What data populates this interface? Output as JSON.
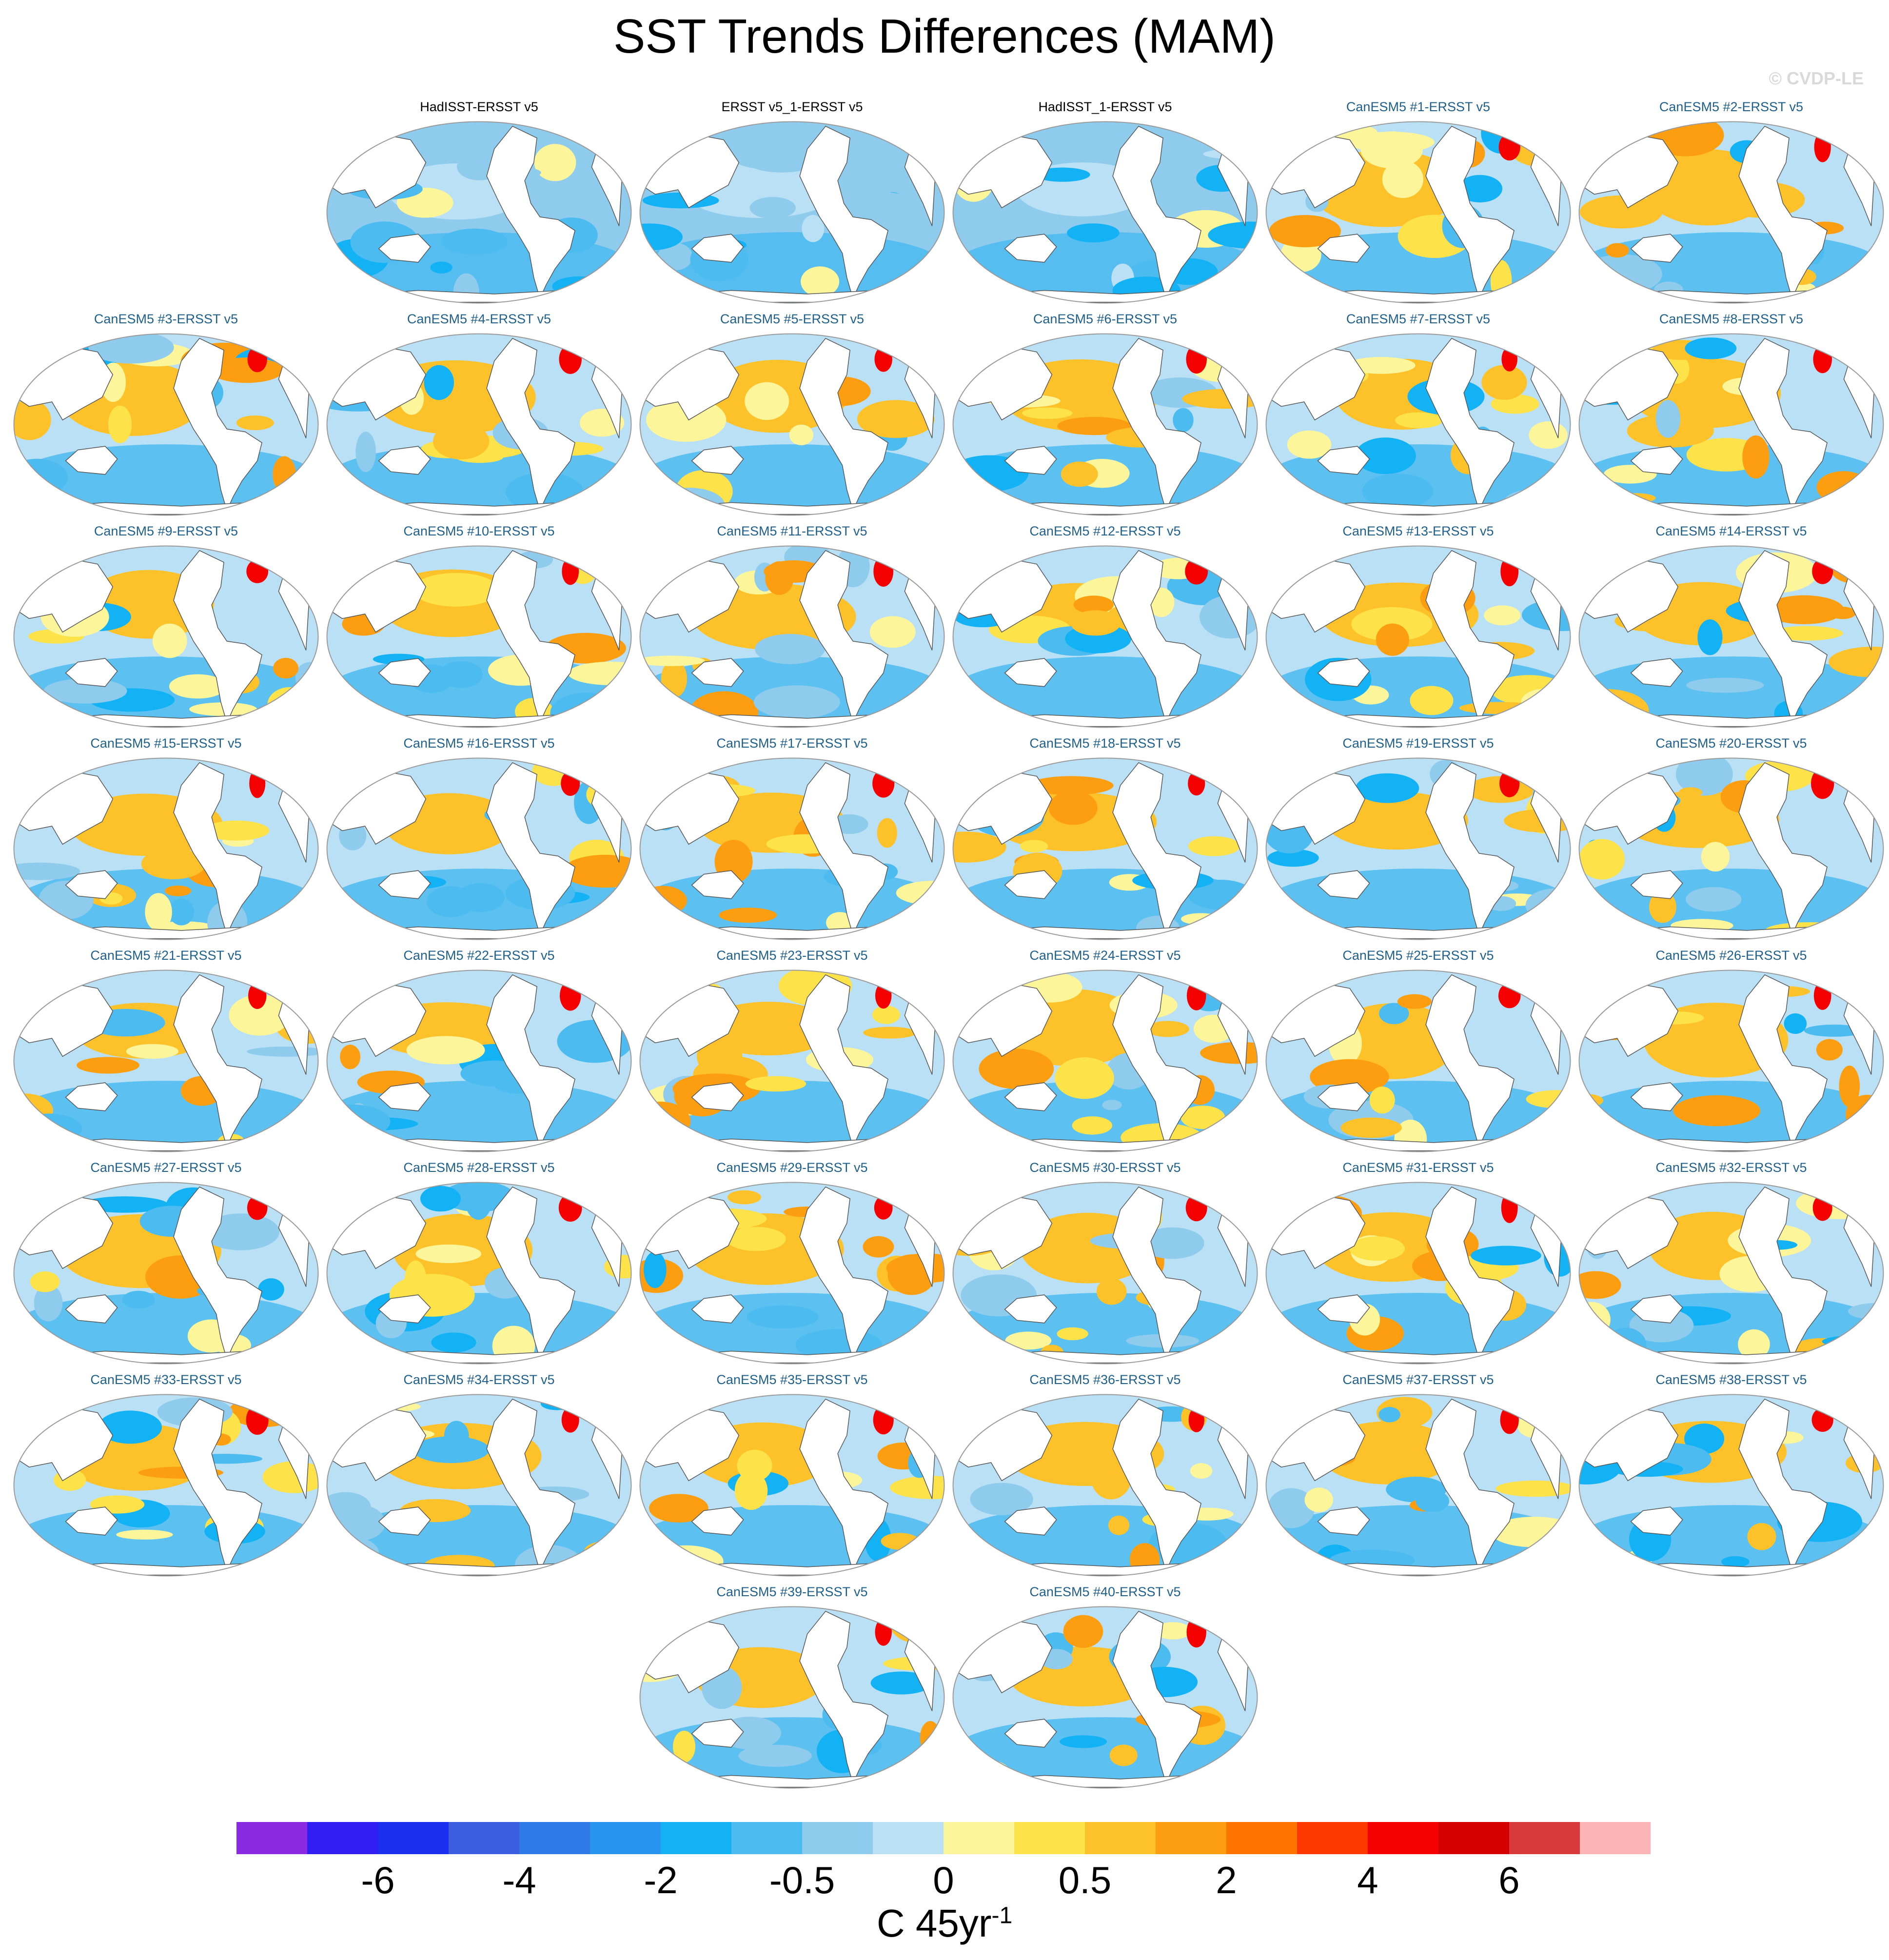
{
  "title": "SST Trends Differences (MAM)",
  "watermark": "© CVDP-LE",
  "units": {
    "base": "C 45yr",
    "exponent": "-1"
  },
  "colors": {
    "obs_label": "#000000",
    "model_label": "#1f5f8b",
    "ocean_warm": "#fde25a",
    "ocean_cool": "#4fb6f2",
    "land": "#ffffff",
    "coast": "#555555",
    "colorbar": [
      "#8a2be2",
      "#2f1df2",
      "#1a2ff0",
      "#3c5ee0",
      "#2f7ae6",
      "#2894f0",
      "#13b2f5",
      "#4bbbf0",
      "#8ecbec",
      "#b9e0f4",
      "#fdf59a",
      "#fde24a",
      "#fdc22a",
      "#fd9e10",
      "#fd7400",
      "#fd3800",
      "#f40000",
      "#d40000",
      "#d83a3a",
      "#fdb4b4"
    ]
  },
  "colorbar_labels": [
    "-6",
    "-4",
    "-2",
    "-0.5",
    "0",
    "0.5",
    "2",
    "4",
    "6"
  ],
  "panels": [
    {
      "label": "HadISST-ERSST v5",
      "obs": true
    },
    {
      "label": "ERSST v5_1-ERSST v5",
      "obs": true
    },
    {
      "label": "HadISST_1-ERSST v5",
      "obs": true
    },
    {
      "label": "CanESM5 #1-ERSST v5",
      "obs": false
    },
    {
      "label": "CanESM5 #2-ERSST v5",
      "obs": false
    },
    {
      "label": "CanESM5 #3-ERSST v5",
      "obs": false
    },
    {
      "label": "CanESM5 #4-ERSST v5",
      "obs": false
    },
    {
      "label": "CanESM5 #5-ERSST v5",
      "obs": false
    },
    {
      "label": "CanESM5 #6-ERSST v5",
      "obs": false
    },
    {
      "label": "CanESM5 #7-ERSST v5",
      "obs": false
    },
    {
      "label": "CanESM5 #8-ERSST v5",
      "obs": false
    },
    {
      "label": "CanESM5 #9-ERSST v5",
      "obs": false
    },
    {
      "label": "CanESM5 #10-ERSST v5",
      "obs": false
    },
    {
      "label": "CanESM5 #11-ERSST v5",
      "obs": false
    },
    {
      "label": "CanESM5 #12-ERSST v5",
      "obs": false
    },
    {
      "label": "CanESM5 #13-ERSST v5",
      "obs": false
    },
    {
      "label": "CanESM5 #14-ERSST v5",
      "obs": false
    },
    {
      "label": "CanESM5 #15-ERSST v5",
      "obs": false
    },
    {
      "label": "CanESM5 #16-ERSST v5",
      "obs": false
    },
    {
      "label": "CanESM5 #17-ERSST v5",
      "obs": false
    },
    {
      "label": "CanESM5 #18-ERSST v5",
      "obs": false
    },
    {
      "label": "CanESM5 #19-ERSST v5",
      "obs": false
    },
    {
      "label": "CanESM5 #20-ERSST v5",
      "obs": false
    },
    {
      "label": "CanESM5 #21-ERSST v5",
      "obs": false
    },
    {
      "label": "CanESM5 #22-ERSST v5",
      "obs": false
    },
    {
      "label": "CanESM5 #23-ERSST v5",
      "obs": false
    },
    {
      "label": "CanESM5 #24-ERSST v5",
      "obs": false
    },
    {
      "label": "CanESM5 #25-ERSST v5",
      "obs": false
    },
    {
      "label": "CanESM5 #26-ERSST v5",
      "obs": false
    },
    {
      "label": "CanESM5 #27-ERSST v5",
      "obs": false
    },
    {
      "label": "CanESM5 #28-ERSST v5",
      "obs": false
    },
    {
      "label": "CanESM5 #29-ERSST v5",
      "obs": false
    },
    {
      "label": "CanESM5 #30-ERSST v5",
      "obs": false
    },
    {
      "label": "CanESM5 #31-ERSST v5",
      "obs": false
    },
    {
      "label": "CanESM5 #32-ERSST v5",
      "obs": false
    },
    {
      "label": "CanESM5 #33-ERSST v5",
      "obs": false
    },
    {
      "label": "CanESM5 #34-ERSST v5",
      "obs": false
    },
    {
      "label": "CanESM5 #35-ERSST v5",
      "obs": false
    },
    {
      "label": "CanESM5 #36-ERSST v5",
      "obs": false
    },
    {
      "label": "CanESM5 #37-ERSST v5",
      "obs": false
    },
    {
      "label": "CanESM5 #38-ERSST v5",
      "obs": false
    },
    {
      "label": "CanESM5 #39-ERSST v5",
      "obs": false
    },
    {
      "label": "CanESM5 #40-ERSST v5",
      "obs": false
    }
  ]
}
